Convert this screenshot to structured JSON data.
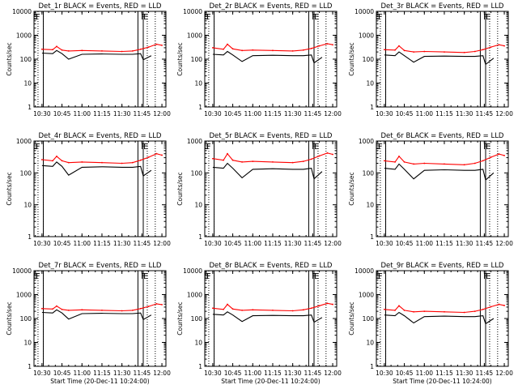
{
  "figure": {
    "background": "#ffffff",
    "axis_color": "#000000",
    "events_color": "#000000",
    "lld_color": "#ff0000"
  },
  "chart_data": [
    {
      "type": "line",
      "title": "Det_1r BLACK = Events, RED = LLD",
      "ylabel": "Counts/sec",
      "xlabel": "",
      "x_ticks": [
        "10:30",
        "10:45",
        "11:00",
        "11:15",
        "11:30",
        "11:45",
        "12:00"
      ],
      "y_ticks": [
        "1",
        "10",
        "100",
        "1000",
        "10000"
      ],
      "y_scale": "log",
      "ylim": [
        1,
        10000
      ],
      "xlim": [
        "10:24",
        "12:03"
      ],
      "markers": {
        "E_left": "10:25",
        "F_left": "10:27",
        "F_right": "11:46",
        "E_right": "11:48"
      },
      "series": [
        {
          "color": "#000000",
          "x": [
            "10:30",
            "10:38",
            "10:41",
            "10:45",
            "10:50",
            "11:00",
            "11:15",
            "11:30",
            "11:38",
            "11:44",
            "11:46",
            "11:52"
          ],
          "y": [
            180,
            170,
            230,
            170,
            100,
            160,
            165,
            160,
            160,
            170,
            95,
            140
          ]
        },
        {
          "color": "#ff0000",
          "x": [
            "10:30",
            "10:38",
            "10:41",
            "10:45",
            "10:50",
            "11:00",
            "11:15",
            "11:30",
            "11:38",
            "11:44",
            "11:50",
            "11:56",
            "12:00"
          ],
          "y": [
            260,
            250,
            340,
            240,
            220,
            230,
            220,
            210,
            220,
            260,
            320,
            420,
            380
          ]
        }
      ],
      "vlines_solid": [
        "10:31",
        "11:42",
        "11:46"
      ],
      "vlines_dotted": [
        "10:27",
        "10:31",
        "11:49",
        "11:55"
      ]
    },
    {
      "type": "line",
      "title": "Det_2r BLACK = Events, RED = LLD",
      "ylabel": "Counts/sec",
      "xlabel": "",
      "x_ticks": [
        "10:30",
        "10:45",
        "11:00",
        "11:15",
        "11:30",
        "11:45",
        "12:00"
      ],
      "y_ticks": [
        "1",
        "10",
        "100",
        "1000",
        "10000"
      ],
      "y_scale": "log",
      "ylim": [
        1,
        10000
      ],
      "xlim": [
        "10:24",
        "12:03"
      ],
      "markers": {
        "E_left": "10:25",
        "F_left": "10:27",
        "F_right": "11:46",
        "E_right": "11:48"
      },
      "series": [
        {
          "color": "#000000",
          "x": [
            "10:30",
            "10:38",
            "10:41",
            "10:45",
            "10:52",
            "11:00",
            "11:15",
            "11:30",
            "11:38",
            "11:44",
            "11:46",
            "11:52"
          ],
          "y": [
            160,
            150,
            210,
            150,
            80,
            140,
            145,
            140,
            140,
            150,
            70,
            120
          ]
        },
        {
          "color": "#ff0000",
          "x": [
            "10:30",
            "10:38",
            "10:41",
            "10:45",
            "10:52",
            "11:00",
            "11:15",
            "11:30",
            "11:38",
            "11:44",
            "11:50",
            "11:56",
            "12:00"
          ],
          "y": [
            300,
            260,
            420,
            270,
            230,
            240,
            230,
            220,
            240,
            280,
            360,
            440,
            400
          ]
        }
      ],
      "vlines_solid": [
        "10:31",
        "11:42",
        "11:46"
      ],
      "vlines_dotted": [
        "10:27",
        "10:31",
        "11:49",
        "11:55"
      ]
    },
    {
      "type": "line",
      "title": "Det_3r BLACK = Events, RED = LLD",
      "ylabel": "Counts/sec",
      "xlabel": "",
      "x_ticks": [
        "10:30",
        "10:45",
        "11:00",
        "11:15",
        "11:30",
        "11:45",
        "12:00"
      ],
      "y_ticks": [
        "1",
        "10",
        "100",
        "1000",
        "10000"
      ],
      "y_scale": "log",
      "ylim": [
        1,
        10000
      ],
      "xlim": [
        "10:24",
        "12:03"
      ],
      "markers": {
        "E_left": "10:25",
        "F_left": "10:27",
        "F_right": "11:46",
        "E_right": "11:48"
      },
      "series": [
        {
          "color": "#000000",
          "x": [
            "10:30",
            "10:38",
            "10:41",
            "10:45",
            "10:52",
            "11:00",
            "11:15",
            "11:30",
            "11:38",
            "11:44",
            "11:46",
            "11:52"
          ],
          "y": [
            150,
            140,
            200,
            140,
            75,
            130,
            135,
            130,
            130,
            140,
            60,
            110
          ]
        },
        {
          "color": "#ff0000",
          "x": [
            "10:30",
            "10:38",
            "10:41",
            "10:45",
            "10:52",
            "11:00",
            "11:15",
            "11:30",
            "11:38",
            "11:44",
            "11:50",
            "11:56",
            "12:00"
          ],
          "y": [
            250,
            240,
            360,
            230,
            200,
            210,
            200,
            190,
            210,
            250,
            320,
            400,
            360
          ]
        }
      ],
      "vlines_solid": [
        "10:31",
        "11:42",
        "11:46"
      ],
      "vlines_dotted": [
        "10:27",
        "10:31",
        "11:49",
        "11:55"
      ]
    },
    {
      "type": "line",
      "title": "Det_4r BLACK = Events, RED = LLD",
      "ylabel": "Counts/sec",
      "xlabel": "",
      "x_ticks": [
        "10:30",
        "10:45",
        "11:00",
        "11:15",
        "11:30",
        "11:45",
        "12:00"
      ],
      "y_ticks": [
        "1",
        "10",
        "100",
        "1000"
      ],
      "y_scale": "log",
      "ylim": [
        1,
        1000
      ],
      "xlim": [
        "10:24",
        "12:03"
      ],
      "markers": {
        "E_left": "10:25",
        "F_left": "10:27",
        "F_right": "11:46",
        "E_right": "11:48"
      },
      "series": [
        {
          "color": "#000000",
          "x": [
            "10:30",
            "10:38",
            "10:41",
            "10:45",
            "10:50",
            "11:00",
            "11:15",
            "11:30",
            "11:38",
            "11:44",
            "11:46",
            "11:52"
          ],
          "y": [
            170,
            160,
            220,
            160,
            85,
            150,
            155,
            150,
            150,
            160,
            80,
            120
          ]
        },
        {
          "color": "#ff0000",
          "x": [
            "10:30",
            "10:38",
            "10:41",
            "10:45",
            "10:50",
            "11:00",
            "11:15",
            "11:30",
            "11:38",
            "11:44",
            "11:50",
            "11:56",
            "12:00"
          ],
          "y": [
            260,
            240,
            330,
            240,
            210,
            220,
            210,
            200,
            210,
            250,
            310,
            400,
            360
          ]
        }
      ],
      "vlines_solid": [
        "10:31",
        "11:42",
        "11:46"
      ],
      "vlines_dotted": [
        "10:27",
        "10:31",
        "11:49",
        "11:55"
      ]
    },
    {
      "type": "line",
      "title": "Det_5r BLACK = Events, RED = LLD",
      "ylabel": "Counts/sec",
      "xlabel": "",
      "x_ticks": [
        "10:30",
        "10:45",
        "11:00",
        "11:15",
        "11:30",
        "11:45",
        "12:00"
      ],
      "y_ticks": [
        "1",
        "10",
        "100",
        "1000"
      ],
      "y_scale": "log",
      "ylim": [
        1,
        1000
      ],
      "xlim": [
        "10:24",
        "12:03"
      ],
      "markers": {
        "E_left": "10:25",
        "F_left": "10:27",
        "F_right": "11:46",
        "E_right": "11:48"
      },
      "series": [
        {
          "color": "#000000",
          "x": [
            "10:30",
            "10:38",
            "10:41",
            "10:45",
            "10:52",
            "11:00",
            "11:15",
            "11:30",
            "11:38",
            "11:44",
            "11:46",
            "11:52"
          ],
          "y": [
            150,
            140,
            200,
            140,
            70,
            130,
            135,
            130,
            130,
            140,
            65,
            110
          ]
        },
        {
          "color": "#ff0000",
          "x": [
            "10:30",
            "10:38",
            "10:41",
            "10:45",
            "10:52",
            "11:00",
            "11:15",
            "11:30",
            "11:38",
            "11:44",
            "11:50",
            "11:56",
            "12:00"
          ],
          "y": [
            280,
            250,
            400,
            250,
            220,
            230,
            220,
            210,
            230,
            270,
            340,
            420,
            380
          ]
        }
      ],
      "vlines_solid": [
        "10:31",
        "11:42",
        "11:46"
      ],
      "vlines_dotted": [
        "10:27",
        "10:31",
        "11:49",
        "11:55"
      ]
    },
    {
      "type": "line",
      "title": "Det_6r BLACK = Events, RED = LLD",
      "ylabel": "Counts/sec",
      "xlabel": "",
      "x_ticks": [
        "10:30",
        "10:45",
        "11:00",
        "11:15",
        "11:30",
        "11:45",
        "12:00"
      ],
      "y_ticks": [
        "1",
        "10",
        "100",
        "1000"
      ],
      "y_scale": "log",
      "ylim": [
        1,
        1000
      ],
      "xlim": [
        "10:24",
        "12:03"
      ],
      "markers": {
        "E_left": "10:25",
        "F_left": "10:27",
        "F_right": "11:46",
        "E_right": "11:48"
      },
      "series": [
        {
          "color": "#000000",
          "x": [
            "10:30",
            "10:38",
            "10:41",
            "10:45",
            "10:52",
            "11:00",
            "11:15",
            "11:30",
            "11:38",
            "11:44",
            "11:46",
            "11:52"
          ],
          "y": [
            140,
            130,
            190,
            130,
            65,
            120,
            125,
            120,
            120,
            130,
            60,
            100
          ]
        },
        {
          "color": "#ff0000",
          "x": [
            "10:30",
            "10:38",
            "10:41",
            "10:45",
            "10:52",
            "11:00",
            "11:15",
            "11:30",
            "11:38",
            "11:44",
            "11:50",
            "11:56",
            "12:00"
          ],
          "y": [
            240,
            220,
            330,
            220,
            190,
            200,
            190,
            180,
            200,
            240,
            310,
            390,
            350
          ]
        }
      ],
      "vlines_solid": [
        "10:31",
        "11:42",
        "11:46"
      ],
      "vlines_dotted": [
        "10:27",
        "10:31",
        "11:49",
        "11:55"
      ]
    },
    {
      "type": "line",
      "title": "Det_7r BLACK = Events, RED = LLD",
      "ylabel": "Counts/sec",
      "xlabel": "Start Time (20-Dec-11 10:24:00)",
      "x_ticks": [
        "10:30",
        "10:45",
        "11:00",
        "11:15",
        "11:30",
        "11:45",
        "12:00"
      ],
      "y_ticks": [
        "1",
        "10",
        "100",
        "1000",
        "10000"
      ],
      "y_scale": "log",
      "ylim": [
        1,
        10000
      ],
      "xlim": [
        "10:24",
        "12:03"
      ],
      "markers": {
        "E_left": "10:25",
        "F_left": "10:27",
        "F_right": "11:46",
        "E_right": "11:48"
      },
      "series": [
        {
          "color": "#000000",
          "x": [
            "10:30",
            "10:38",
            "10:41",
            "10:45",
            "10:50",
            "11:00",
            "11:15",
            "11:30",
            "11:38",
            "11:44",
            "11:46",
            "11:52"
          ],
          "y": [
            180,
            170,
            230,
            170,
            95,
            160,
            165,
            160,
            160,
            170,
            90,
            140
          ]
        },
        {
          "color": "#ff0000",
          "x": [
            "10:30",
            "10:38",
            "10:41",
            "10:45",
            "10:50",
            "11:00",
            "11:15",
            "11:30",
            "11:38",
            "11:44",
            "11:50",
            "11:56",
            "12:00"
          ],
          "y": [
            260,
            250,
            330,
            240,
            220,
            230,
            220,
            210,
            220,
            260,
            320,
            410,
            380
          ]
        }
      ],
      "vlines_solid": [
        "10:31",
        "11:42",
        "11:46"
      ],
      "vlines_dotted": [
        "10:27",
        "10:31",
        "11:49",
        "11:55"
      ]
    },
    {
      "type": "line",
      "title": "Det_8r BLACK = Events, RED = LLD",
      "ylabel": "Counts/sec",
      "xlabel": "Start Time (20-Dec-11 10:24:00)",
      "x_ticks": [
        "10:30",
        "10:45",
        "11:00",
        "11:15",
        "11:30",
        "11:45",
        "12:00"
      ],
      "y_ticks": [
        "1",
        "10",
        "100",
        "1000",
        "10000"
      ],
      "y_scale": "log",
      "ylim": [
        1,
        10000
      ],
      "xlim": [
        "10:24",
        "12:03"
      ],
      "markers": {
        "E_left": "10:25",
        "F_left": "10:27",
        "F_right": "11:46",
        "E_right": "11:48"
      },
      "series": [
        {
          "color": "#000000",
          "x": [
            "10:30",
            "10:38",
            "10:41",
            "10:45",
            "10:52",
            "11:00",
            "11:15",
            "11:30",
            "11:38",
            "11:44",
            "11:46",
            "11:52"
          ],
          "y": [
            150,
            140,
            190,
            140,
            75,
            130,
            135,
            130,
            130,
            140,
            70,
            110
          ]
        },
        {
          "color": "#ff0000",
          "x": [
            "10:30",
            "10:38",
            "10:41",
            "10:45",
            "10:52",
            "11:00",
            "11:15",
            "11:30",
            "11:38",
            "11:44",
            "11:50",
            "11:56",
            "12:00"
          ],
          "y": [
            270,
            240,
            390,
            250,
            220,
            230,
            220,
            210,
            230,
            270,
            340,
            430,
            390
          ]
        }
      ],
      "vlines_solid": [
        "10:31",
        "11:42",
        "11:46"
      ],
      "vlines_dotted": [
        "10:27",
        "10:31",
        "11:49",
        "11:55"
      ]
    },
    {
      "type": "line",
      "title": "Det_9r BLACK = Events, RED = LLD",
      "ylabel": "Counts/sec",
      "xlabel": "Start Time (20-Dec-11 10:24:00)",
      "x_ticks": [
        "10:30",
        "10:45",
        "11:00",
        "11:15",
        "11:30",
        "11:45",
        "12:00"
      ],
      "y_ticks": [
        "1",
        "10",
        "100",
        "1000",
        "10000"
      ],
      "y_scale": "log",
      "ylim": [
        1,
        10000
      ],
      "xlim": [
        "10:24",
        "12:03"
      ],
      "markers": {
        "E_left": "10:25",
        "F_left": "10:27",
        "F_right": "11:46",
        "E_right": "11:48"
      },
      "series": [
        {
          "color": "#000000",
          "x": [
            "10:30",
            "10:38",
            "10:41",
            "10:45",
            "10:52",
            "11:00",
            "11:15",
            "11:30",
            "11:38",
            "11:44",
            "11:46",
            "11:52"
          ],
          "y": [
            140,
            130,
            180,
            130,
            65,
            120,
            125,
            120,
            120,
            130,
            60,
            100
          ]
        },
        {
          "color": "#ff0000",
          "x": [
            "10:30",
            "10:38",
            "10:41",
            "10:45",
            "10:52",
            "11:00",
            "11:15",
            "11:30",
            "11:38",
            "11:44",
            "11:50",
            "11:56",
            "12:00"
          ],
          "y": [
            240,
            220,
            340,
            220,
            190,
            200,
            190,
            180,
            200,
            240,
            310,
            390,
            350
          ]
        }
      ],
      "vlines_solid": [
        "10:31",
        "11:42",
        "11:46"
      ],
      "vlines_dotted": [
        "10:27",
        "10:31",
        "11:49",
        "11:55"
      ]
    }
  ]
}
